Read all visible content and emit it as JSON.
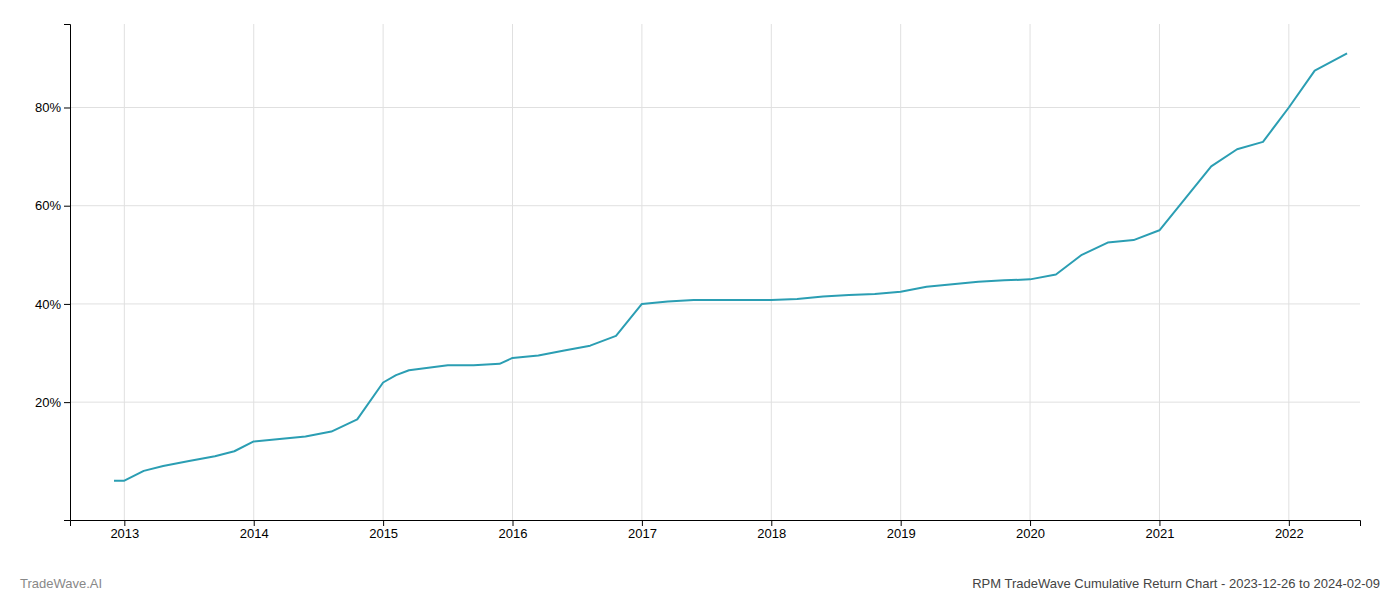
{
  "chart_data": {
    "type": "line",
    "title": "RPM TradeWave Cumulative Return Chart - 2023-12-26 to 2024-02-09",
    "annotations": [
      "TradeWave.AI"
    ],
    "color": "#2b9eb3",
    "x": [
      2012.92,
      2013.0,
      2013.15,
      2013.3,
      2013.5,
      2013.7,
      2013.85,
      2014.0,
      2014.2,
      2014.4,
      2014.6,
      2014.8,
      2015.0,
      2015.1,
      2015.2,
      2015.35,
      2015.5,
      2015.7,
      2015.9,
      2016.0,
      2016.2,
      2016.4,
      2016.6,
      2016.8,
      2017.0,
      2017.2,
      2017.4,
      2017.6,
      2017.8,
      2018.0,
      2018.2,
      2018.4,
      2018.6,
      2018.8,
      2019.0,
      2019.2,
      2019.4,
      2019.6,
      2019.8,
      2020.0,
      2020.2,
      2020.4,
      2020.6,
      2020.8,
      2021.0,
      2021.2,
      2021.4,
      2021.6,
      2021.8,
      2022.0,
      2022.2,
      2022.45
    ],
    "values": [
      0.04,
      0.04,
      0.06,
      0.07,
      0.08,
      0.09,
      0.1,
      0.12,
      0.125,
      0.13,
      0.14,
      0.165,
      0.24,
      0.255,
      0.265,
      0.27,
      0.275,
      0.275,
      0.278,
      0.29,
      0.295,
      0.305,
      0.315,
      0.335,
      0.4,
      0.405,
      0.408,
      0.408,
      0.408,
      0.408,
      0.41,
      0.415,
      0.418,
      0.42,
      0.425,
      0.435,
      0.44,
      0.445,
      0.448,
      0.45,
      0.46,
      0.5,
      0.525,
      0.53,
      0.55,
      0.615,
      0.68,
      0.715,
      0.73,
      0.8,
      0.875,
      0.91
    ],
    "xlim": [
      2012.58,
      2022.55
    ],
    "ylim": [
      -0.04,
      0.97
    ],
    "xticks": [
      2013,
      2014,
      2015,
      2016,
      2017,
      2018,
      2019,
      2020,
      2021,
      2022
    ],
    "yticks": [
      {
        "value": 0.2,
        "label": "20%"
      },
      {
        "value": 0.4,
        "label": "40%"
      },
      {
        "value": 0.6,
        "label": "60%"
      },
      {
        "value": 0.8,
        "label": "80%"
      }
    ],
    "grid": true
  }
}
